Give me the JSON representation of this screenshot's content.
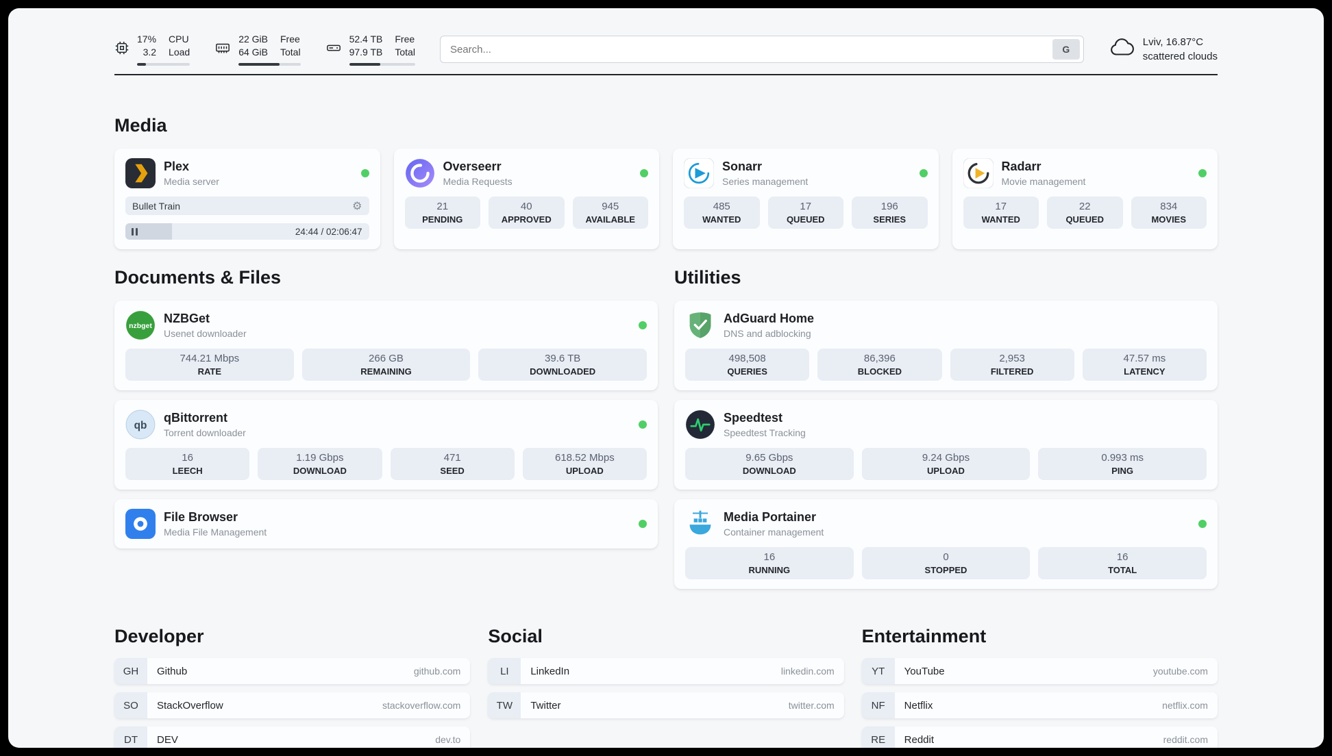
{
  "topbar": {
    "cpu": {
      "icon": "cpu-icon",
      "value_top": "17%",
      "value_bottom": "3.2",
      "label_top": "CPU",
      "label_bottom": "Load",
      "bar_percent": 17
    },
    "ram": {
      "icon": "ram-icon",
      "value_top": "22 GiB",
      "value_bottom": "64 GiB",
      "label_top": "Free",
      "label_bottom": "Total",
      "bar_percent": 66
    },
    "disk": {
      "icon": "disk-icon",
      "value_top": "52.4 TB",
      "value_bottom": "97.9 TB",
      "label_top": "Free",
      "label_bottom": "Total",
      "bar_percent": 47
    },
    "search": {
      "placeholder": "Search...",
      "engine_label": "G"
    },
    "weather": {
      "icon": "cloud-icon",
      "location": "Lviv, 16.87°C",
      "condition": "scattered clouds"
    }
  },
  "sections": {
    "media": {
      "title": "Media",
      "apps": [
        {
          "name": "Plex",
          "subtitle": "Media server",
          "icon": "plex-icon",
          "online": true,
          "now_playing": {
            "track": "Bullet Train",
            "time": "24:44 / 02:06:47",
            "progress_percent": 19
          }
        },
        {
          "name": "Overseerr",
          "subtitle": "Media Requests",
          "icon": "overseerr-icon",
          "online": true,
          "stats": [
            {
              "value": "21",
              "label": "PENDING"
            },
            {
              "value": "40",
              "label": "APPROVED"
            },
            {
              "value": "945",
              "label": "AVAILABLE"
            }
          ]
        },
        {
          "name": "Sonarr",
          "subtitle": "Series management",
          "icon": "sonarr-icon",
          "online": true,
          "stats": [
            {
              "value": "485",
              "label": "WANTED"
            },
            {
              "value": "17",
              "label": "QUEUED"
            },
            {
              "value": "196",
              "label": "SERIES"
            }
          ]
        },
        {
          "name": "Radarr",
          "subtitle": "Movie management",
          "icon": "radarr-icon",
          "online": true,
          "stats": [
            {
              "value": "17",
              "label": "WANTED"
            },
            {
              "value": "22",
              "label": "QUEUED"
            },
            {
              "value": "834",
              "label": "MOVIES"
            }
          ]
        }
      ]
    },
    "documents": {
      "title": "Documents & Files",
      "apps": [
        {
          "name": "NZBGet",
          "subtitle": "Usenet downloader",
          "icon": "nzbget-icon",
          "online": true,
          "stats": [
            {
              "value": "744.21 Mbps",
              "label": "RATE"
            },
            {
              "value": "266 GB",
              "label": "REMAINING"
            },
            {
              "value": "39.6 TB",
              "label": "DOWNLOADED"
            }
          ]
        },
        {
          "name": "qBittorrent",
          "subtitle": "Torrent downloader",
          "icon": "qbittorrent-icon",
          "online": true,
          "stats": [
            {
              "value": "16",
              "label": "LEECH"
            },
            {
              "value": "1.19 Gbps",
              "label": "DOWNLOAD"
            },
            {
              "value": "471",
              "label": "SEED"
            },
            {
              "value": "618.52 Mbps",
              "label": "UPLOAD"
            }
          ]
        },
        {
          "name": "File Browser",
          "subtitle": "Media File Management",
          "icon": "filebrowser-icon",
          "online": true,
          "stats": []
        }
      ]
    },
    "utilities": {
      "title": "Utilities",
      "apps": [
        {
          "name": "AdGuard Home",
          "subtitle": "DNS and adblocking",
          "icon": "adguard-icon",
          "online": false,
          "stats": [
            {
              "value": "498,508",
              "label": "QUERIES"
            },
            {
              "value": "86,396",
              "label": "BLOCKED"
            },
            {
              "value": "2,953",
              "label": "FILTERED"
            },
            {
              "value": "47.57 ms",
              "label": "LATENCY"
            }
          ]
        },
        {
          "name": "Speedtest",
          "subtitle": "Speedtest Tracking",
          "icon": "speedtest-icon",
          "online": false,
          "stats": [
            {
              "value": "9.65 Gbps",
              "label": "DOWNLOAD"
            },
            {
              "value": "9.24 Gbps",
              "label": "UPLOAD"
            },
            {
              "value": "0.993 ms",
              "label": "PING"
            }
          ]
        },
        {
          "name": "Media Portainer",
          "subtitle": "Container management",
          "icon": "portainer-icon",
          "online": true,
          "stats": [
            {
              "value": "16",
              "label": "RUNNING"
            },
            {
              "value": "0",
              "label": "STOPPED"
            },
            {
              "value": "16",
              "label": "TOTAL"
            }
          ]
        }
      ]
    },
    "bookmarks": [
      {
        "title": "Developer",
        "items": [
          {
            "abbr": "GH",
            "name": "Github",
            "url": "github.com"
          },
          {
            "abbr": "SO",
            "name": "StackOverflow",
            "url": "stackoverflow.com"
          },
          {
            "abbr": "DT",
            "name": "DEV",
            "url": "dev.to"
          }
        ]
      },
      {
        "title": "Social",
        "items": [
          {
            "abbr": "LI",
            "name": "LinkedIn",
            "url": "linkedin.com"
          },
          {
            "abbr": "TW",
            "name": "Twitter",
            "url": "twitter.com"
          }
        ]
      },
      {
        "title": "Entertainment",
        "items": [
          {
            "abbr": "YT",
            "name": "YouTube",
            "url": "youtube.com"
          },
          {
            "abbr": "NF",
            "name": "Netflix",
            "url": "netflix.com"
          },
          {
            "abbr": "RE",
            "name": "Reddit",
            "url": "reddit.com"
          }
        ]
      }
    ]
  },
  "colors": {
    "status_online": "#51cf66",
    "stat_box_bg": "#e9edf4",
    "page_bg": "#f6f7f9",
    "plex_accent": "#e5a00d"
  }
}
